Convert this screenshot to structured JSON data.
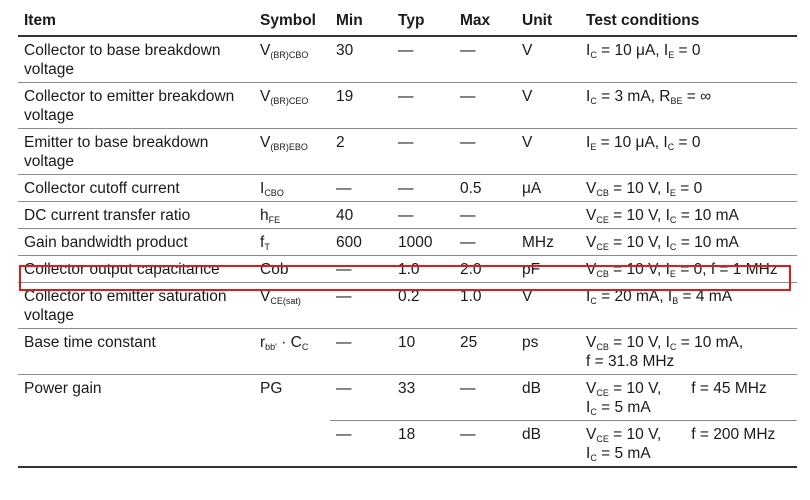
{
  "headers": {
    "item": "Item",
    "symbol": "Symbol",
    "min": "Min",
    "typ": "Typ",
    "max": "Max",
    "unit": "Unit",
    "cond": "Test conditions"
  },
  "rows": [
    {
      "item": "Collector to base breakdown voltage",
      "sym": "V",
      "sym_sub": "(BR)CBO",
      "min": "30",
      "typ": "—",
      "max": "—",
      "unit": "V",
      "c1": "I",
      "c1s": "C",
      "c2": " = 10 μA, I",
      "c2s": "E",
      "c3": " = 0"
    },
    {
      "item": "Collector to emitter breakdown voltage",
      "sym": "V",
      "sym_sub": "(BR)CEO",
      "min": "19",
      "typ": "—",
      "max": "—",
      "unit": "V",
      "c1": "I",
      "c1s": "C",
      "c2": " = 3 mA, R",
      "c2s": "BE",
      "c3": " = ∞"
    },
    {
      "item": "Emitter to base breakdown voltage",
      "sym": "V",
      "sym_sub": "(BR)EBO",
      "min": "2",
      "typ": "—",
      "max": "—",
      "unit": "V",
      "c1": "I",
      "c1s": "E",
      "c2": " = 10 μA, I",
      "c2s": "C",
      "c3": " = 0"
    },
    {
      "item": "Collector cutoff current",
      "sym": "I",
      "sym_sub": "CBO",
      "min": "—",
      "typ": "—",
      "max": "0.5",
      "unit": "μA",
      "c1": "V",
      "c1s": "CB",
      "c2": " = 10 V, I",
      "c2s": "E",
      "c3": " = 0"
    },
    {
      "item": "DC current transfer ratio",
      "sym": "h",
      "sym_sub": "FE",
      "min": "40",
      "typ": "—",
      "max": "—",
      "unit": "",
      "c1": "V",
      "c1s": "CE",
      "c2": " = 10 V, I",
      "c2s": "C",
      "c3": " = 10 mA"
    },
    {
      "item": "Gain bandwidth product",
      "sym": "f",
      "sym_sub": "T",
      "min": "600",
      "typ": "1000",
      "max": "—",
      "unit": "MHz",
      "c1": "V",
      "c1s": "CE",
      "c2": " = 10 V, I",
      "c2s": "C",
      "c3": " = 10 mA"
    },
    {
      "item": "Collector output capacitance",
      "sym": "Cob",
      "sym_sub": "",
      "min": "—",
      "typ": "1.0",
      "max": "2.0",
      "unit": "pF",
      "c1": "V",
      "c1s": "CB",
      "c2": " = 10 V, I",
      "c2s": "E",
      "c3": " = 0, f = 1 MHz"
    },
    {
      "item": "Collector to emitter saturation voltage",
      "sym": "V",
      "sym_sub": "CE(sat)",
      "min": "—",
      "typ": "0.2",
      "max": "1.0",
      "unit": "V",
      "c1": "I",
      "c1s": "C",
      "c2": " = 20 mA, I",
      "c2s": "B",
      "c3": " = 4 mA"
    },
    {
      "item": "Base time constant",
      "sym": "r",
      "sym_sub": "bb'",
      "sym2": " · C",
      "sym2_sub": "C",
      "min": "—",
      "typ": "10",
      "max": "25",
      "unit": "ps",
      "c1": "V",
      "c1s": "CB",
      "c2": " = 10 V, I",
      "c2s": "C",
      "c3": " = 10 mA,",
      "c4": "f = 31.8 MHz"
    }
  ],
  "power_gain": {
    "item": "Power gain",
    "sym": "PG",
    "rows": [
      {
        "min": "—",
        "typ": "33",
        "max": "—",
        "unit": "dB",
        "c1": "V",
        "c1s": "CE",
        "c2": " = 10 V,",
        "freq": "f = 45 MHz",
        "line2": "I",
        "line2s": "C",
        "line2b": " = 5 mA"
      },
      {
        "min": "—",
        "typ": "18",
        "max": "—",
        "unit": "dB",
        "c1": "V",
        "c1s": "CE",
        "c2": " = 10 V,",
        "freq": "f = 200 MHz",
        "line2": "I",
        "line2s": "C",
        "line2b": " = 5 mA"
      }
    ]
  },
  "highlight_color": "#e11b1b"
}
